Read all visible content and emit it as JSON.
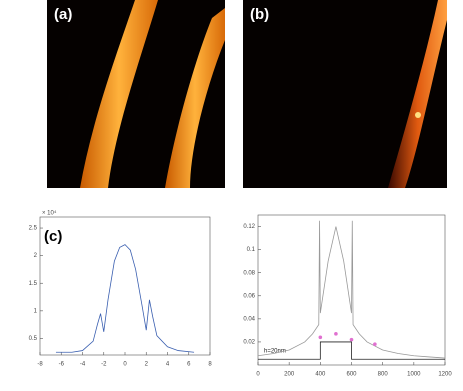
{
  "images": [
    {
      "label": "(a)"
    },
    {
      "label": "(b)"
    }
  ],
  "chart_data": [
    {
      "type": "line",
      "label": "(c)",
      "y_multiplier": "× 10⁴",
      "x": [
        -6.5,
        -5,
        -4,
        -3,
        -2.6,
        -2.3,
        -2.0,
        -1.6,
        -1,
        -0.5,
        0,
        0.5,
        1,
        1.6,
        2.0,
        2.3,
        2.6,
        3,
        4,
        5,
        6.5
      ],
      "series": [
        {
          "color": "#3a5fb0",
          "values": [
            0.25,
            0.25,
            0.28,
            0.45,
            0.75,
            0.95,
            0.62,
            1.2,
            1.9,
            2.15,
            2.2,
            2.1,
            1.75,
            1.1,
            0.65,
            1.2,
            0.9,
            0.55,
            0.35,
            0.28,
            0.25
          ]
        }
      ],
      "xlim": [
        -8,
        8
      ],
      "xticks": [
        -8,
        -6,
        -4,
        -2,
        0,
        2,
        4,
        6,
        8
      ],
      "ylim": [
        0.2,
        2.7
      ],
      "yticks": [
        0.5,
        1,
        1.5,
        2,
        2.5
      ]
    },
    {
      "type": "line",
      "annotation": "h=20nm",
      "series": [
        {
          "color": "#999999",
          "mode": "line",
          "x": [
            0,
            100,
            200,
            300,
            350,
            390,
            395,
            400,
            450,
            500,
            550,
            600,
            605,
            610,
            650,
            700,
            800,
            900,
            1000,
            1100,
            1200
          ],
          "values": [
            0.008,
            0.01,
            0.013,
            0.02,
            0.027,
            0.035,
            0.125,
            0.045,
            0.09,
            0.12,
            0.09,
            0.045,
            0.125,
            0.035,
            0.027,
            0.02,
            0.013,
            0.01,
            0.008,
            0.007,
            0.006
          ]
        },
        {
          "color": "#222222",
          "mode": "line",
          "x": [
            0,
            400,
            400,
            600,
            600,
            1200
          ],
          "values": [
            0.005,
            0.005,
            0.02,
            0.02,
            0.005,
            0.005
          ]
        },
        {
          "color": "#e070d0",
          "mode": "markers",
          "x": [
            400,
            500,
            600,
            750
          ],
          "values": [
            0.024,
            0.027,
            0.022,
            0.018
          ]
        }
      ],
      "xlim": [
        0,
        1200
      ],
      "xticks": [
        0,
        200,
        400,
        600,
        800,
        1000,
        1200
      ],
      "ylim": [
        0,
        0.13
      ],
      "yticks": [
        0.02,
        0.04,
        0.06,
        0.08,
        0.1,
        0.12
      ]
    }
  ]
}
